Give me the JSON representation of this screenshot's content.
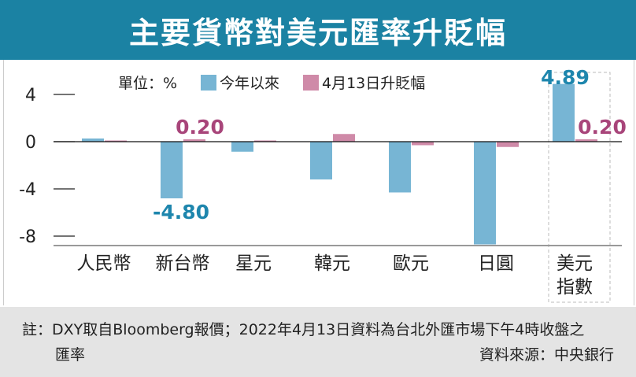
{
  "chart_data": {
    "type": "bar",
    "title": "主要貨幣對美元匯率升貶幅",
    "unit_label": "單位：%",
    "categories": [
      "人民幣",
      "新台幣",
      "星元",
      "韓元",
      "歐元",
      "日圓",
      "美元指數"
    ],
    "series": [
      {
        "name": "今年以來",
        "color": "#77b5d4",
        "values": [
          0.27,
          -4.8,
          -0.85,
          -3.2,
          -4.3,
          -8.7,
          4.89
        ]
      },
      {
        "name": "4月13日升貶幅",
        "color": "#cf8aa8",
        "values": [
          0.1,
          0.2,
          0.1,
          0.65,
          -0.3,
          -0.45,
          0.2
        ]
      }
    ],
    "data_labels": [
      {
        "series": 0,
        "index": 1,
        "text": "-4.80",
        "color": "#1e86ad"
      },
      {
        "series": 1,
        "index": 1,
        "text": "0.20",
        "color": "#a8457a"
      },
      {
        "series": 0,
        "index": 6,
        "text": "4.89",
        "color": "#1e86ad"
      },
      {
        "series": 1,
        "index": 6,
        "text": "0.20",
        "color": "#a8457a"
      }
    ],
    "yticks": [
      4,
      0,
      -4,
      -8
    ],
    "ytick_labels": [
      "4",
      "0",
      "-4",
      "-8"
    ],
    "ylim": [
      -8.8,
      5
    ],
    "legend_position": "top"
  },
  "footer": {
    "note": "註：DXY取自Bloomberg報價；2022年4月13日資料為台北外匯市場下午4時收盤之",
    "note_cont": "匯率",
    "source": "資料來源：中央銀行"
  }
}
